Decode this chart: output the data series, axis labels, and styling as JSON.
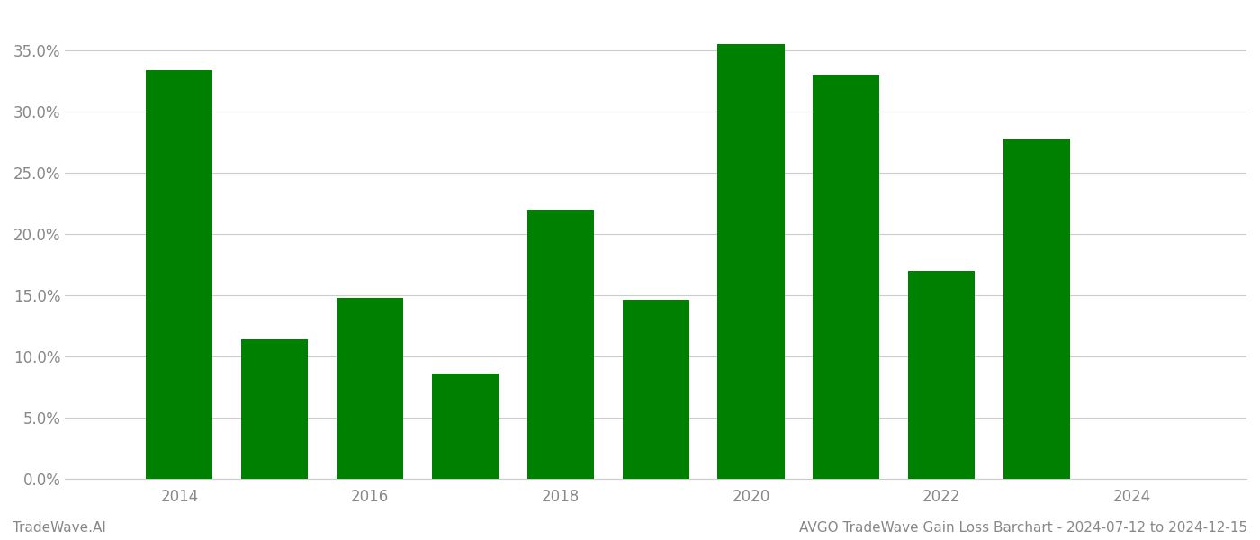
{
  "years": [
    2014,
    2015,
    2016,
    2017,
    2018,
    2019,
    2020,
    2021,
    2022,
    2023
  ],
  "values": [
    0.334,
    0.114,
    0.148,
    0.086,
    0.22,
    0.146,
    0.355,
    0.33,
    0.17,
    0.278
  ],
  "bar_color": "#008000",
  "background_color": "#ffffff",
  "grid_color": "#cccccc",
  "tick_color": "#888888",
  "ylim": [
    0,
    0.38
  ],
  "yticks": [
    0.0,
    0.05,
    0.1,
    0.15,
    0.2,
    0.25,
    0.3,
    0.35
  ],
  "xlim": [
    2012.8,
    2025.2
  ],
  "xticks": [
    2014,
    2016,
    2018,
    2020,
    2022,
    2024
  ],
  "bar_width": 0.7,
  "footer_left": "TradeWave.AI",
  "footer_right": "AVGO TradeWave Gain Loss Barchart - 2024-07-12 to 2024-12-15",
  "footer_color": "#888888",
  "footer_fontsize": 11
}
